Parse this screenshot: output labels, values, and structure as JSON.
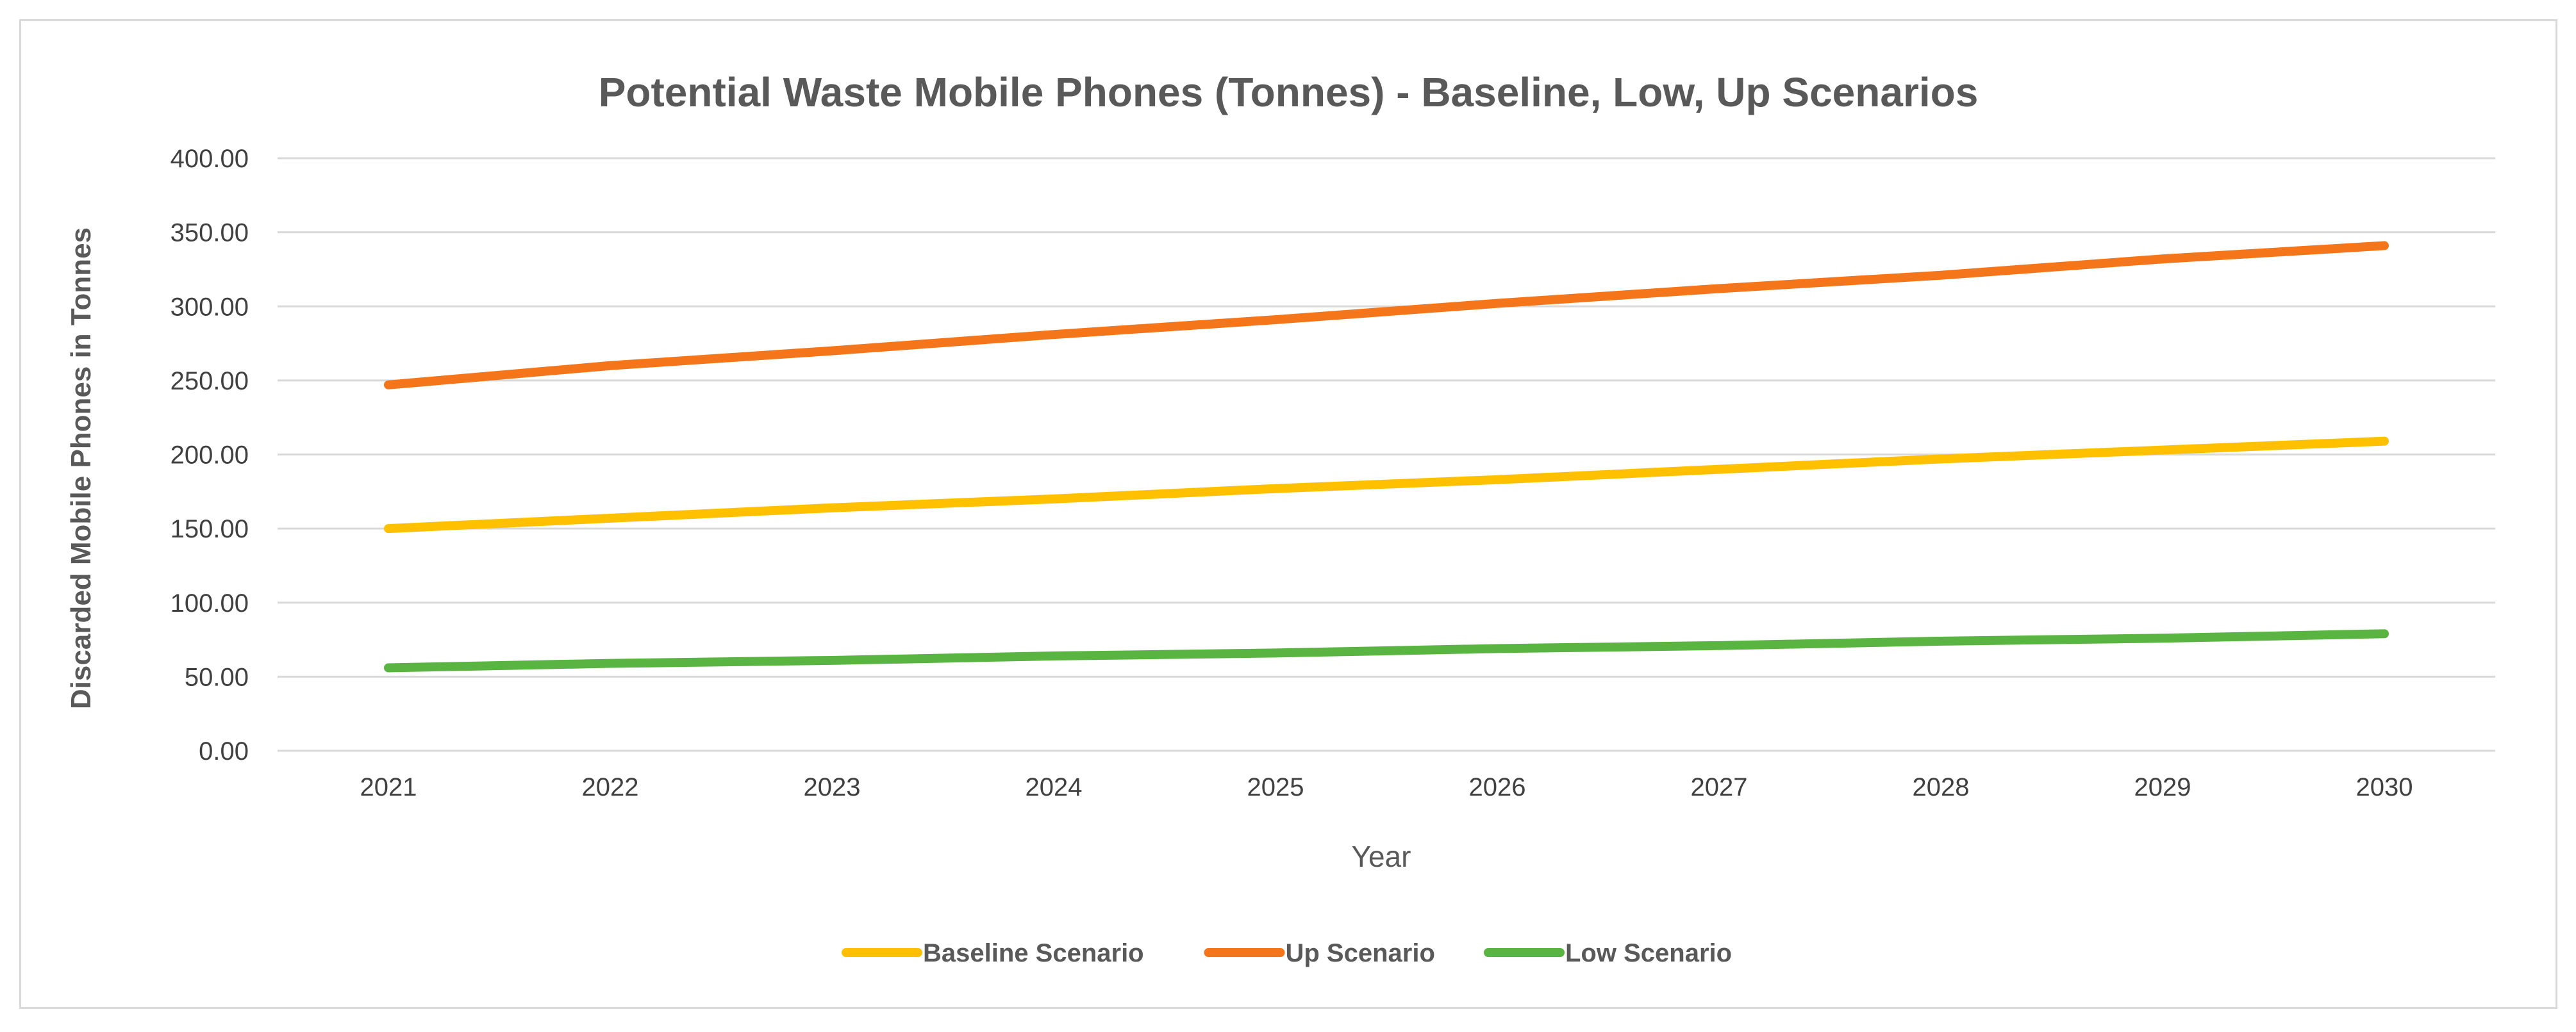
{
  "chart_data": {
    "type": "line",
    "title": "Potential Waste Mobile Phones (Tonnes) - Baseline, Low, Up Scenarios",
    "xlabel": "Year",
    "ylabel": "Discarded Mobile Phones in Tonnes",
    "categories": [
      "2021",
      "2022",
      "2023",
      "2024",
      "2025",
      "2026",
      "2027",
      "2028",
      "2029",
      "2030"
    ],
    "ylim": [
      0,
      400
    ],
    "yticks": [
      0,
      50,
      100,
      150,
      200,
      250,
      300,
      350,
      400
    ],
    "ytick_labels": [
      "0.00",
      "50.00",
      "100.00",
      "150.00",
      "200.00",
      "250.00",
      "300.00",
      "350.00",
      "400.00"
    ],
    "grid": true,
    "legend_position": "bottom",
    "series": [
      {
        "name": "Baseline Scenario",
        "color": "#FFC000",
        "values": [
          150,
          157,
          164,
          170,
          177,
          183,
          190,
          197,
          203,
          209
        ]
      },
      {
        "name": "Up Scenario",
        "color": "#F5761A",
        "values": [
          247,
          260,
          270,
          281,
          291,
          302,
          312,
          321,
          332,
          341
        ]
      },
      {
        "name": "Low Scenario",
        "color": "#59B442",
        "values": [
          56,
          59,
          61,
          64,
          66,
          69,
          71,
          74,
          76,
          79
        ]
      }
    ]
  }
}
